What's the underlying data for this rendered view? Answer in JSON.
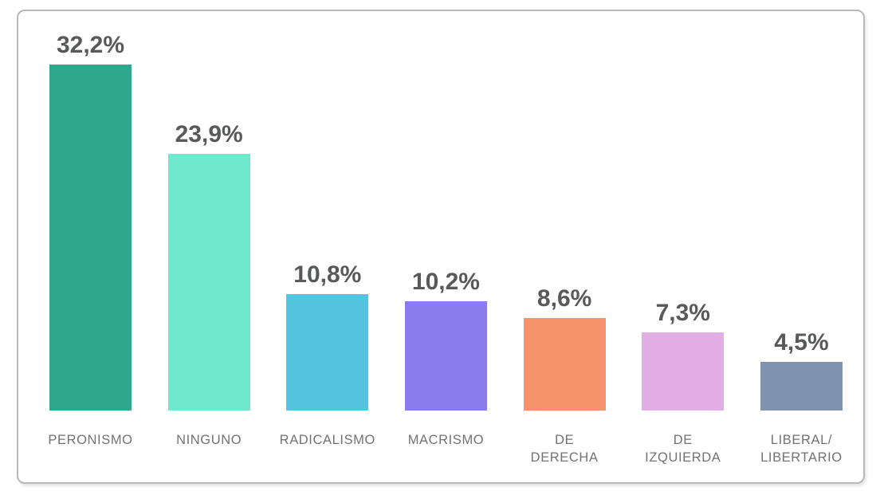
{
  "chart_data": {
    "type": "bar",
    "categories": [
      "PERONISMO",
      "NINGUNO",
      "RADICALISMO",
      "MACRISMO",
      "DE DERECHA",
      "DE IZQUIERDA",
      "LIBERAL/\nLIBERTARIO"
    ],
    "values": [
      32.2,
      23.9,
      10.8,
      10.2,
      8.6,
      7.3,
      4.5
    ],
    "value_labels": [
      "32,2%",
      "23,9%",
      "10,8%",
      "10,2%",
      "8,6%",
      "7,3%",
      "4,5%"
    ],
    "bar_colors": [
      "#2ea78c",
      "#6fe9ce",
      "#55c4e0",
      "#8a7cee",
      "#f6936c",
      "#e2ace4",
      "#8093ae"
    ],
    "title": "",
    "xlabel": "",
    "ylabel": "",
    "ylim": [
      0,
      36
    ],
    "grid": false,
    "legend": false,
    "value_label_color": "#58595b",
    "category_label_color": "#717275",
    "frame_border_color": "#b8b8b8",
    "background": "#ffffff"
  }
}
